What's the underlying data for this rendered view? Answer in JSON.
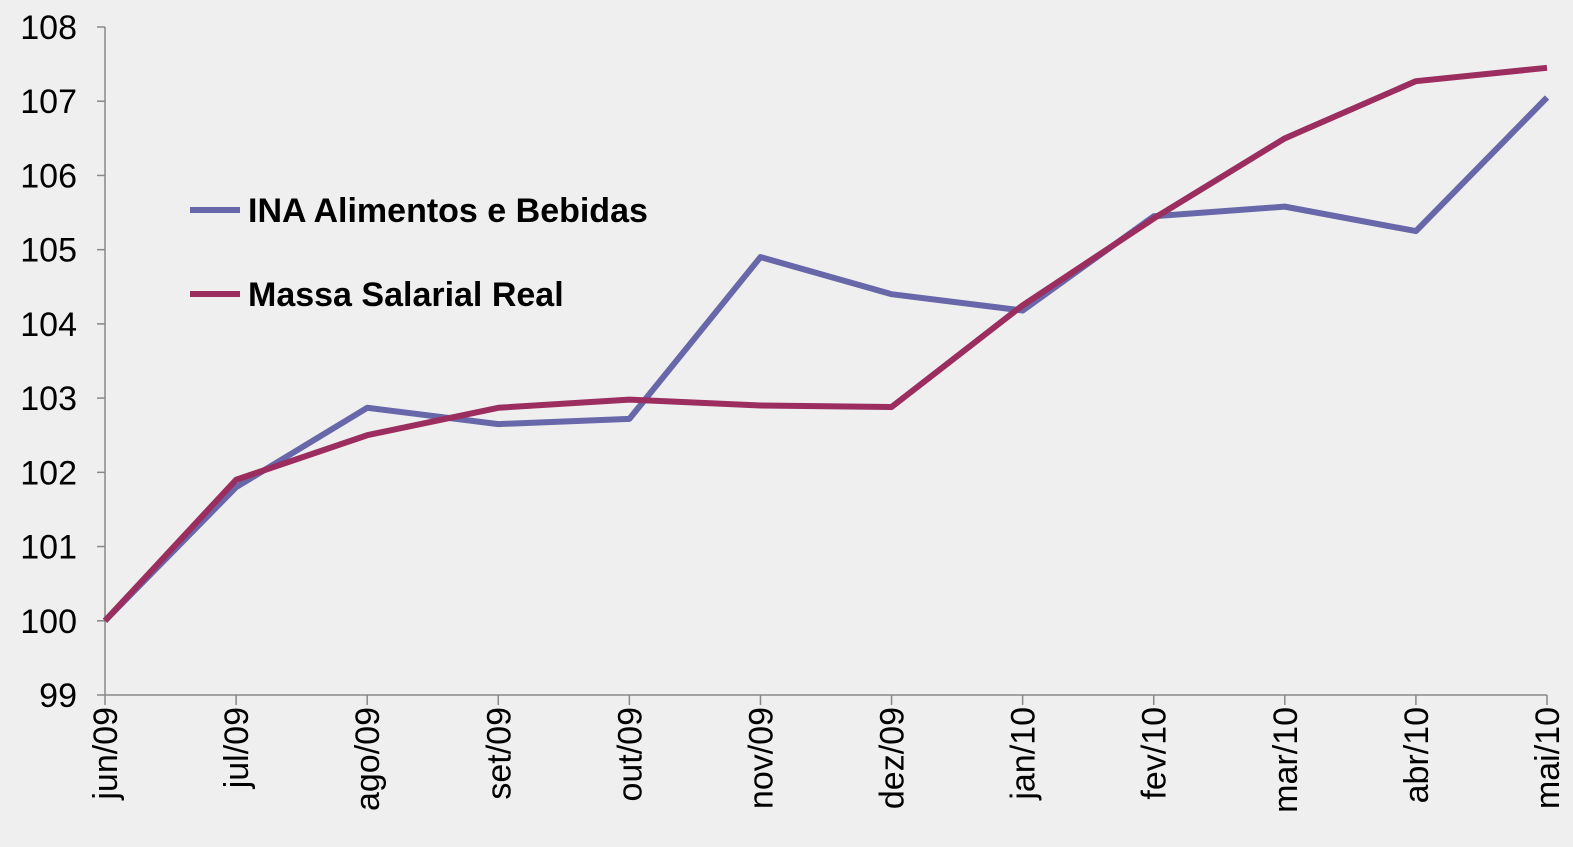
{
  "chart_data": {
    "type": "line",
    "categories": [
      "jun/09",
      "jul/09",
      "ago/09",
      "set/09",
      "out/09",
      "nov/09",
      "dez/09",
      "jan/10",
      "fev/10",
      "mar/10",
      "abr/10",
      "mai/10"
    ],
    "series": [
      {
        "name": "INA Alimentos e Bebidas",
        "color": "#6767a9",
        "values": [
          100,
          101.8,
          102.87,
          102.65,
          102.72,
          104.9,
          104.4,
          104.18,
          105.45,
          105.58,
          105.25,
          107.05
        ]
      },
      {
        "name": "Massa Salarial Real",
        "color": "#9b2d5f",
        "values": [
          100,
          101.9,
          102.5,
          102.87,
          102.98,
          102.9,
          102.88,
          104.25,
          105.42,
          106.5,
          107.27,
          107.45
        ]
      }
    ],
    "ylim": [
      99,
      108
    ],
    "yticks": [
      99,
      100,
      101,
      102,
      103,
      104,
      105,
      106,
      107,
      108
    ],
    "grid": false
  }
}
